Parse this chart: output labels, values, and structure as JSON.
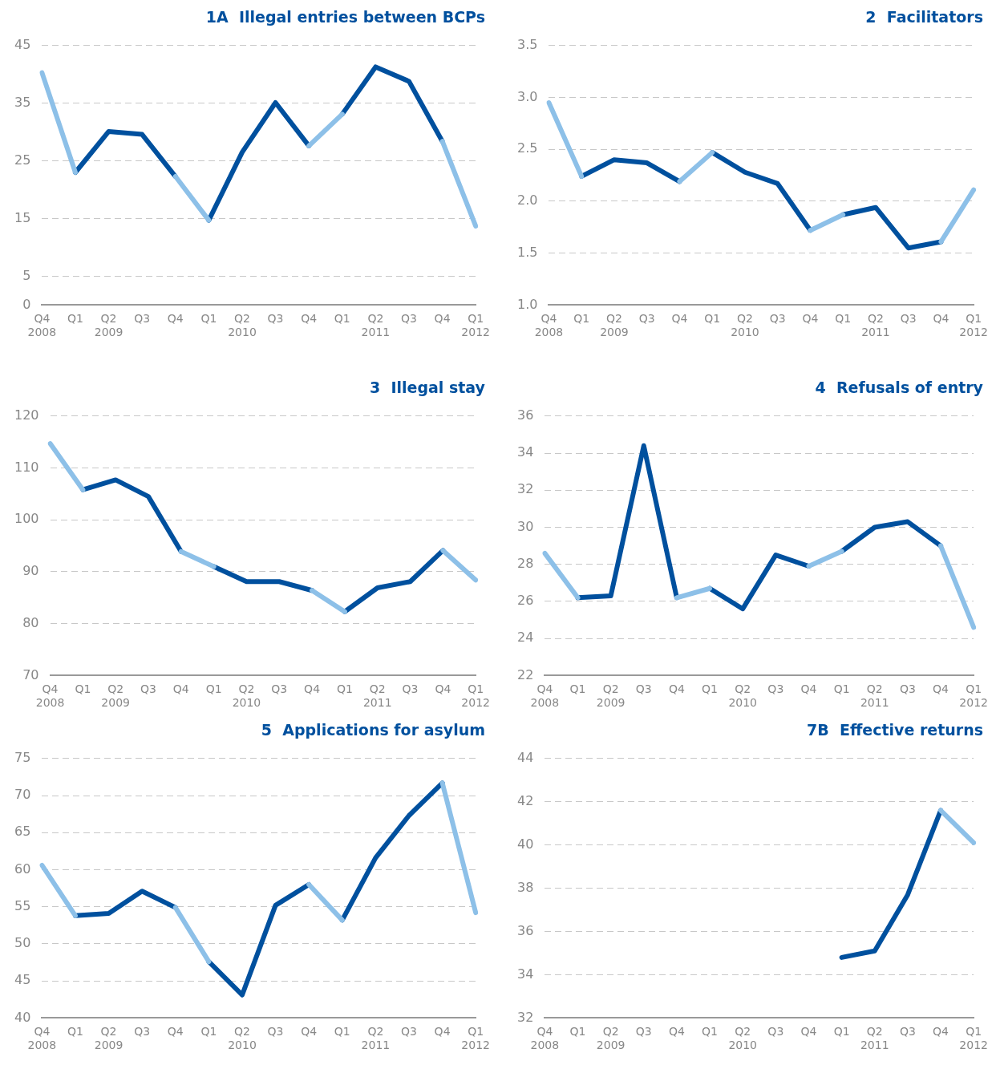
{
  "chart_data": [
    {
      "type": "line",
      "title": "1A  Illegal entries between BCPs",
      "categories": [
        "Q4\n2008",
        "Q1",
        "Q2\n2009",
        "Q3",
        "Q4",
        "Q1",
        "Q2\n2010",
        "Q3",
        "Q4",
        "Q1",
        "Q2\n2011",
        "Q3",
        "Q4",
        "Q1\n2012"
      ],
      "ylim": [
        0,
        45
      ],
      "yticks": [
        0,
        5,
        15,
        25,
        35,
        45
      ],
      "grid": "y",
      "legend": false,
      "series": [
        {
          "color": "#8dc0e8",
          "values": [
            40.3,
            23.0,
            null,
            null,
            22.3,
            14.7,
            null,
            null,
            27.6,
            33.1,
            null,
            null,
            28.4,
            13.7
          ]
        },
        {
          "color": "#00509e",
          "values": [
            null,
            23.0,
            30.1,
            29.6,
            22.3,
            null,
            null,
            null,
            null,
            null,
            null,
            null,
            null,
            null
          ]
        },
        {
          "color": "#00509e",
          "values": [
            null,
            null,
            null,
            null,
            null,
            14.7,
            26.5,
            35.1,
            27.6,
            null,
            null,
            null,
            null,
            null
          ]
        },
        {
          "color": "#00509e",
          "values": [
            null,
            null,
            null,
            null,
            null,
            null,
            null,
            null,
            null,
            33.1,
            41.3,
            38.8,
            28.4,
            null
          ]
        }
      ]
    },
    {
      "type": "line",
      "title": "2  Facilitators",
      "categories": [
        "Q4\n2008",
        "Q1",
        "Q2\n2009",
        "Q3",
        "Q4",
        "Q1",
        "Q2\n2010",
        "Q3",
        "Q4",
        "Q1",
        "Q2\n2011",
        "Q3",
        "Q4",
        "Q1\n2012"
      ],
      "ylim": [
        1,
        3.5
      ],
      "yticks": [
        {
          "value": 1,
          "label": "1.0"
        },
        1.5,
        {
          "value": 2,
          "label": "2.0"
        },
        2.5,
        {
          "value": 3,
          "label": "3.0"
        },
        3.5
      ],
      "grid": "y",
      "legend": false,
      "series": [
        {
          "color": "#8dc0e8",
          "values": [
            2.95,
            2.24,
            null,
            null,
            2.19,
            2.47,
            null,
            null,
            1.72,
            1.87,
            null,
            null,
            1.61,
            2.11
          ]
        },
        {
          "color": "#00509e",
          "values": [
            null,
            2.24,
            2.4,
            2.37,
            2.19,
            null,
            null,
            null,
            null,
            null,
            null,
            null,
            null,
            null
          ]
        },
        {
          "color": "#00509e",
          "values": [
            null,
            null,
            null,
            null,
            null,
            2.47,
            2.28,
            2.17,
            1.72,
            null,
            null,
            null,
            null,
            null
          ]
        },
        {
          "color": "#00509e",
          "values": [
            null,
            null,
            null,
            null,
            null,
            null,
            null,
            null,
            null,
            1.87,
            1.94,
            1.55,
            1.61,
            null
          ]
        }
      ]
    },
    {
      "type": "line",
      "title": "3  Illegal stay",
      "categories": [
        "Q4\n2008",
        "Q1",
        "Q2\n2009",
        "Q3",
        "Q4",
        "Q1",
        "Q2\n2010",
        "Q3",
        "Q4",
        "Q1",
        "Q2\n2011",
        "Q3",
        "Q4",
        "Q1\n2012"
      ],
      "ylim": [
        70,
        120
      ],
      "yticks": [
        70,
        80,
        90,
        100,
        110,
        120
      ],
      "grid": "y",
      "legend": false,
      "series": [
        {
          "color": "#8dc0e8",
          "values": [
            114.7,
            105.8,
            null,
            null,
            93.9,
            91.0,
            null,
            null,
            86.4,
            82.3,
            null,
            null,
            94.1,
            88.4
          ]
        },
        {
          "color": "#00509e",
          "values": [
            null,
            105.8,
            107.7,
            104.5,
            93.9,
            null,
            null,
            null,
            null,
            null,
            null,
            null,
            null,
            null
          ]
        },
        {
          "color": "#00509e",
          "values": [
            null,
            null,
            null,
            null,
            null,
            91.0,
            88.1,
            88.1,
            86.4,
            null,
            null,
            null,
            null,
            null
          ]
        },
        {
          "color": "#00509e",
          "values": [
            null,
            null,
            null,
            null,
            null,
            null,
            null,
            null,
            null,
            82.3,
            86.9,
            88.1,
            94.1,
            null
          ]
        }
      ]
    },
    {
      "type": "line",
      "title": "4  Refusals of entry",
      "categories": [
        "Q4\n2008",
        "Q1",
        "Q2\n2009",
        "Q3",
        "Q4",
        "Q1",
        "Q2\n2010",
        "Q3",
        "Q4",
        "Q1",
        "Q2\n2011",
        "Q3",
        "Q4",
        "Q1\n2012"
      ],
      "ylim": [
        22,
        36
      ],
      "yticks": [
        22,
        24,
        26,
        28,
        30,
        32,
        34,
        36
      ],
      "grid": "y",
      "legend": false,
      "series": [
        {
          "color": "#8dc0e8",
          "values": [
            28.6,
            26.2,
            null,
            null,
            26.2,
            26.7,
            null,
            null,
            27.9,
            28.7,
            null,
            null,
            29.0,
            24.6
          ]
        },
        {
          "color": "#00509e",
          "values": [
            null,
            26.2,
            26.3,
            34.4,
            26.2,
            null,
            null,
            null,
            null,
            null,
            null,
            null,
            null,
            null
          ]
        },
        {
          "color": "#00509e",
          "values": [
            null,
            null,
            null,
            null,
            null,
            26.7,
            25.6,
            28.5,
            27.9,
            null,
            null,
            null,
            null,
            null
          ]
        },
        {
          "color": "#00509e",
          "values": [
            null,
            null,
            null,
            null,
            null,
            null,
            null,
            null,
            null,
            28.7,
            30.0,
            30.3,
            29.0,
            null
          ]
        }
      ]
    },
    {
      "type": "line",
      "title": "5  Applications for asylum",
      "categories": [
        "Q4\n2008",
        "Q1",
        "Q2\n2009",
        "Q3",
        "Q4",
        "Q1",
        "Q2\n2010",
        "Q3",
        "Q4",
        "Q1",
        "Q2\n2011",
        "Q3",
        "Q4",
        "Q1\n2012"
      ],
      "ylim": [
        40,
        75
      ],
      "yticks": [
        40,
        45,
        50,
        55,
        60,
        65,
        70,
        75
      ],
      "grid": "y",
      "legend": false,
      "series": [
        {
          "color": "#8dc0e8",
          "values": [
            60.6,
            53.8,
            null,
            null,
            54.9,
            47.6,
            null,
            null,
            58.0,
            53.2,
            null,
            null,
            71.7,
            54.2
          ]
        },
        {
          "color": "#00509e",
          "values": [
            null,
            53.8,
            54.1,
            57.1,
            54.9,
            null,
            null,
            null,
            null,
            null,
            null,
            null,
            null,
            null
          ]
        },
        {
          "color": "#00509e",
          "values": [
            null,
            null,
            null,
            null,
            null,
            47.6,
            43.1,
            55.2,
            58.0,
            null,
            null,
            null,
            null,
            null
          ]
        },
        {
          "color": "#00509e",
          "values": [
            null,
            null,
            null,
            null,
            null,
            null,
            null,
            null,
            null,
            53.2,
            61.6,
            67.3,
            71.7,
            null
          ]
        }
      ]
    },
    {
      "type": "line",
      "title": "7B  Effective returns",
      "categories": [
        "Q4\n2008",
        "Q1",
        "Q2\n2009",
        "Q3",
        "Q4",
        "Q1",
        "Q2\n2010",
        "Q3",
        "Q4",
        "Q1",
        "Q2\n2011",
        "Q3",
        "Q4",
        "Q1\n2012"
      ],
      "ylim": [
        32,
        44
      ],
      "yticks": [
        32,
        34,
        36,
        38,
        40,
        42,
        44
      ],
      "grid": "y",
      "legend": false,
      "series": [
        {
          "color": "#8dc0e8",
          "values": [
            null,
            null,
            null,
            null,
            null,
            null,
            null,
            null,
            null,
            null,
            null,
            null,
            41.6,
            40.1
          ]
        },
        {
          "color": "#00509e",
          "values": [
            null,
            null,
            null,
            null,
            null,
            null,
            null,
            null,
            null,
            34.8,
            35.1,
            37.7,
            41.6,
            null
          ]
        }
      ]
    }
  ]
}
